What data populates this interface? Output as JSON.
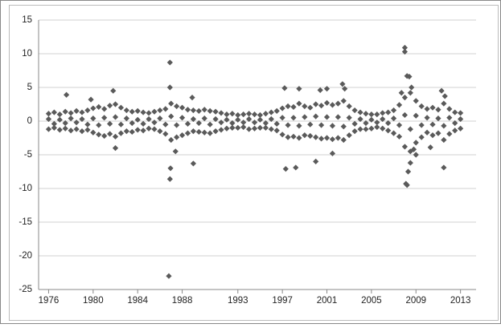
{
  "chart_data": {
    "type": "scatter",
    "x": [
      1976.0,
      1976.0,
      1976.0,
      1976.5,
      1976.5,
      1976.5,
      1977.0,
      1977.0,
      1977.0,
      1977.5,
      1977.5,
      1977.5,
      1978.0,
      1978.0,
      1978.0,
      1978.5,
      1978.5,
      1978.5,
      1979.0,
      1979.0,
      1979.0,
      1979.5,
      1979.5,
      1979.5,
      1980.0,
      1980.0,
      1980.0,
      1980.5,
      1980.5,
      1980.5,
      1981.0,
      1981.0,
      1981.0,
      1981.5,
      1981.5,
      1981.5,
      1982.0,
      1982.0,
      1982.0,
      1982.5,
      1982.5,
      1982.5,
      1983.0,
      1983.0,
      1983.0,
      1983.5,
      1983.5,
      1983.5,
      1984.0,
      1984.0,
      1984.0,
      1984.5,
      1984.5,
      1984.5,
      1985.0,
      1985.0,
      1985.0,
      1985.5,
      1985.5,
      1985.5,
      1986.0,
      1986.0,
      1986.0,
      1986.5,
      1986.5,
      1986.5,
      1987.0,
      1987.0,
      1987.0,
      1987.5,
      1987.5,
      1987.5,
      1988.0,
      1988.0,
      1988.0,
      1988.5,
      1988.5,
      1988.5,
      1989.0,
      1989.0,
      1989.0,
      1989.5,
      1989.5,
      1989.5,
      1990.0,
      1990.0,
      1990.0,
      1990.5,
      1990.5,
      1990.5,
      1991.0,
      1991.0,
      1991.0,
      1991.5,
      1991.5,
      1991.5,
      1992.0,
      1992.0,
      1992.0,
      1992.5,
      1992.5,
      1992.5,
      1993.0,
      1993.0,
      1993.0,
      1993.5,
      1993.5,
      1993.5,
      1994.0,
      1994.0,
      1994.0,
      1994.5,
      1994.5,
      1994.5,
      1995.0,
      1995.0,
      1995.0,
      1995.5,
      1995.5,
      1995.5,
      1996.0,
      1996.0,
      1996.0,
      1996.5,
      1996.5,
      1996.5,
      1997.0,
      1997.0,
      1997.0,
      1997.5,
      1997.5,
      1997.5,
      1998.0,
      1998.0,
      1998.0,
      1998.5,
      1998.5,
      1998.5,
      1999.0,
      1999.0,
      1999.0,
      1999.5,
      1999.5,
      1999.5,
      2000.0,
      2000.0,
      2000.0,
      2000.5,
      2000.5,
      2000.5,
      2001.0,
      2001.0,
      2001.0,
      2001.5,
      2001.5,
      2001.5,
      2002.0,
      2002.0,
      2002.0,
      2002.5,
      2002.5,
      2002.5,
      2003.0,
      2003.0,
      2003.0,
      2003.5,
      2003.5,
      2003.5,
      2004.0,
      2004.0,
      2004.0,
      2004.5,
      2004.5,
      2004.5,
      2005.0,
      2005.0,
      2005.0,
      2005.5,
      2005.5,
      2005.5,
      2006.0,
      2006.0,
      2006.0,
      2006.5,
      2006.5,
      2006.5,
      2007.0,
      2007.0,
      2007.0,
      2007.5,
      2007.5,
      2007.5,
      2008.0,
      2008.0,
      2008.0,
      2008.5,
      2008.5,
      2008.5,
      2009.0,
      2009.0,
      2009.0,
      2009.5,
      2009.5,
      2009.5,
      2010.0,
      2010.0,
      2010.0,
      2010.5,
      2010.5,
      2010.5,
      2011.0,
      2011.0,
      2011.0,
      2011.5,
      2011.5,
      2011.5,
      2012.0,
      2012.0,
      2012.0,
      2012.5,
      2012.5,
      2012.5,
      2013.0,
      2013.0,
      2013.0,
      1977.6,
      1981.8,
      1982.0,
      1986.9,
      1986.9,
      1986.9,
      1986.8,
      1986.95,
      1989.0,
      1987.4,
      1997.2,
      1997.3,
      1998.2,
      1998.5,
      2000.0,
      2000.4,
      2001.0,
      2002.4,
      2002.6,
      2001.5,
      2008.0,
      2008.0,
      2008.2,
      2008.4,
      2008.1,
      2008.2,
      2008.3,
      2008.5,
      2008.6,
      2007.7,
      2011.5,
      2011.3,
      2010.3,
      1988.9,
      1979.8,
      2009.0,
      2008.8,
      2011.6
    ],
    "series": [
      {
        "color": "#5a5a5a",
        "values": [
          1.1,
          -1.2,
          0.3,
          1.3,
          -1.0,
          -0.4,
          1.0,
          -1.3,
          0.2,
          1.4,
          -1.1,
          -0.3,
          1.2,
          -1.4,
          0.4,
          1.5,
          -1.2,
          -0.2,
          1.3,
          -1.5,
          0.3,
          1.6,
          -1.3,
          -0.5,
          1.9,
          -1.7,
          0.4,
          2.1,
          -2.0,
          -0.6,
          1.8,
          -2.2,
          0.5,
          2.3,
          -1.9,
          -0.4,
          2.5,
          -2.3,
          0.6,
          2.0,
          -1.8,
          -0.5,
          1.6,
          -1.5,
          0.4,
          1.4,
          -1.6,
          -0.3,
          1.5,
          -1.3,
          0.2,
          1.3,
          -1.4,
          -0.4,
          1.2,
          -1.1,
          0.3,
          1.4,
          -1.2,
          -0.2,
          1.6,
          -1.5,
          0.4,
          1.8,
          -1.9,
          -0.5,
          2.6,
          -2.8,
          0.7,
          2.2,
          -2.4,
          -0.6,
          2.0,
          -2.1,
          0.5,
          1.7,
          -1.8,
          -0.4,
          1.6,
          -1.5,
          0.3,
          1.5,
          -1.6,
          -0.3,
          1.7,
          -1.7,
          0.4,
          1.5,
          -1.8,
          -0.5,
          1.4,
          -1.5,
          0.3,
          1.2,
          -1.3,
          -0.2,
          1.0,
          -1.1,
          0.2,
          1.1,
          -1.0,
          -0.3,
          0.9,
          -1.0,
          0.2,
          1.0,
          -0.9,
          -0.2,
          1.1,
          -1.2,
          0.3,
          1.0,
          -1.1,
          -0.2,
          0.9,
          -1.0,
          0.2,
          1.1,
          -1.0,
          -0.3,
          1.3,
          -1.2,
          0.3,
          1.5,
          -1.4,
          -0.4,
          1.9,
          -2.0,
          0.5,
          2.2,
          -2.4,
          -0.6,
          2.1,
          -2.3,
          0.5,
          2.6,
          -2.5,
          -0.7,
          2.2,
          -2.1,
          0.6,
          2.0,
          -2.2,
          -0.5,
          2.5,
          -2.4,
          0.7,
          2.3,
          -2.6,
          -0.6,
          2.7,
          -2.5,
          0.6,
          2.4,
          -2.7,
          -0.7,
          2.6,
          -2.5,
          0.6,
          3.0,
          -2.8,
          -0.8,
          2.2,
          -2.1,
          0.5,
          1.6,
          -1.5,
          -0.4,
          1.3,
          -1.2,
          0.3,
          1.1,
          -1.2,
          -0.3,
          1.0,
          -1.1,
          0.2,
          1.0,
          -0.9,
          -0.2,
          1.2,
          -1.1,
          0.3,
          1.3,
          -1.4,
          -0.3,
          1.6,
          -1.8,
          0.4,
          2.4,
          -2.3,
          -0.6,
          3.5,
          -3.8,
          0.9,
          4.2,
          -4.5,
          -1.2,
          3.0,
          -3.2,
          0.8,
          2.2,
          -2.4,
          -0.6,
          1.8,
          -1.7,
          0.5,
          2.0,
          -2.1,
          -0.5,
          1.7,
          -1.8,
          0.4,
          2.6,
          -2.8,
          -0.7,
          1.8,
          -1.9,
          0.5,
          1.3,
          -1.4,
          -0.3,
          1.2,
          -1.1,
          0.3,
          3.9,
          4.5,
          -4.0,
          8.7,
          5.0,
          -8.6,
          -23.0,
          -7.0,
          -6.3,
          -4.5,
          4.9,
          -7.1,
          -6.9,
          4.8,
          -6.0,
          4.6,
          4.8,
          5.5,
          4.8,
          -4.8,
          10.9,
          10.3,
          6.7,
          6.6,
          -9.3,
          -9.5,
          -7.5,
          -6.2,
          5.0,
          4.2,
          -6.9,
          4.5,
          -3.9,
          3.5,
          3.2,
          -5.0,
          -4.2,
          3.7
        ]
      }
    ],
    "xlim": [
      1975.1,
      2014.4
    ],
    "xticks": [
      1976,
      1980,
      1984,
      1988,
      1993,
      1997,
      2001,
      2005,
      2009,
      2013
    ],
    "ylim": [
      -25,
      15
    ],
    "yticks": [
      -25,
      -20,
      -15,
      -10,
      -5,
      0,
      5,
      10,
      15
    ],
    "grid": true
  }
}
